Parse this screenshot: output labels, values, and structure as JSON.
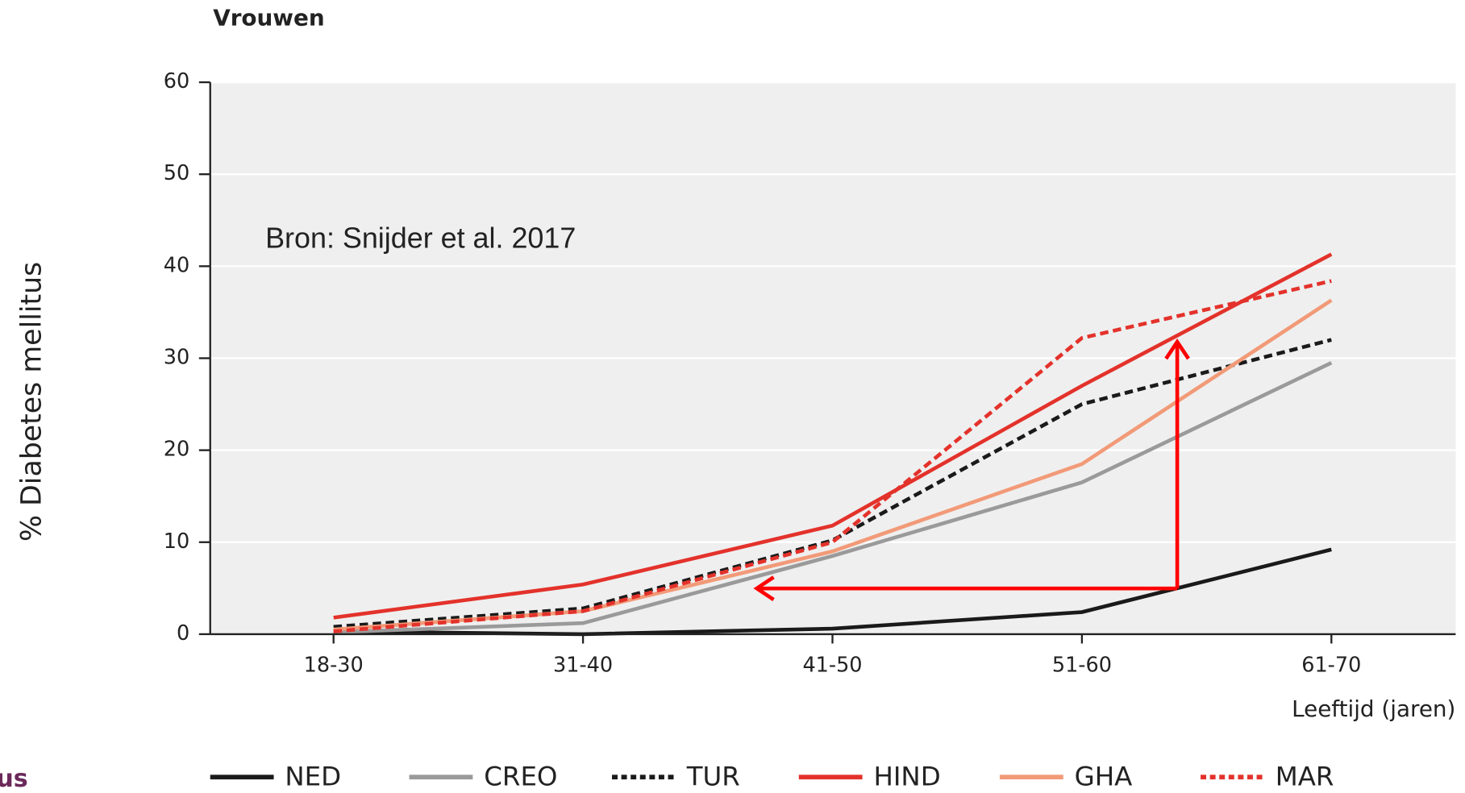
{
  "chart_data": {
    "type": "line",
    "title": "Vrouwen",
    "y_label": "% Diabetes mellitus",
    "x_label": "Leeftijd (jaren)",
    "annotation": "Bron: Snijder et al. 2017",
    "logo_fragment": "us",
    "categories": [
      "18-30",
      "31-40",
      "41-50",
      "51-60",
      "61-70"
    ],
    "ylim": [
      0,
      60
    ],
    "yticks": [
      0,
      10,
      20,
      30,
      40,
      50,
      60
    ],
    "grid": true,
    "series": [
      {
        "name": "NED",
        "color": "#1a1a1a",
        "style": "solid",
        "values": [
          0.3,
          0,
          0.6,
          2.4,
          9.2
        ]
      },
      {
        "name": "CREO",
        "color": "#9a9a9a",
        "style": "solid",
        "values": [
          0.2,
          1.2,
          8.5,
          16.5,
          29.5
        ]
      },
      {
        "name": "TUR",
        "color": "#1a1a1a",
        "style": "dashed",
        "values": [
          0.8,
          2.8,
          10.2,
          25,
          32
        ]
      },
      {
        "name": "HIND",
        "color": "#e3322b",
        "style": "solid",
        "values": [
          1.8,
          5.4,
          11.8,
          27,
          41.3
        ]
      },
      {
        "name": "GHA",
        "color": "#f29a78",
        "style": "solid",
        "values": [
          0.5,
          2.5,
          9,
          18.5,
          36.3
        ]
      },
      {
        "name": "MAR",
        "color": "#e3322b",
        "style": "dashed",
        "values": [
          0.3,
          2.5,
          10,
          32.2,
          38.4
        ]
      }
    ]
  }
}
